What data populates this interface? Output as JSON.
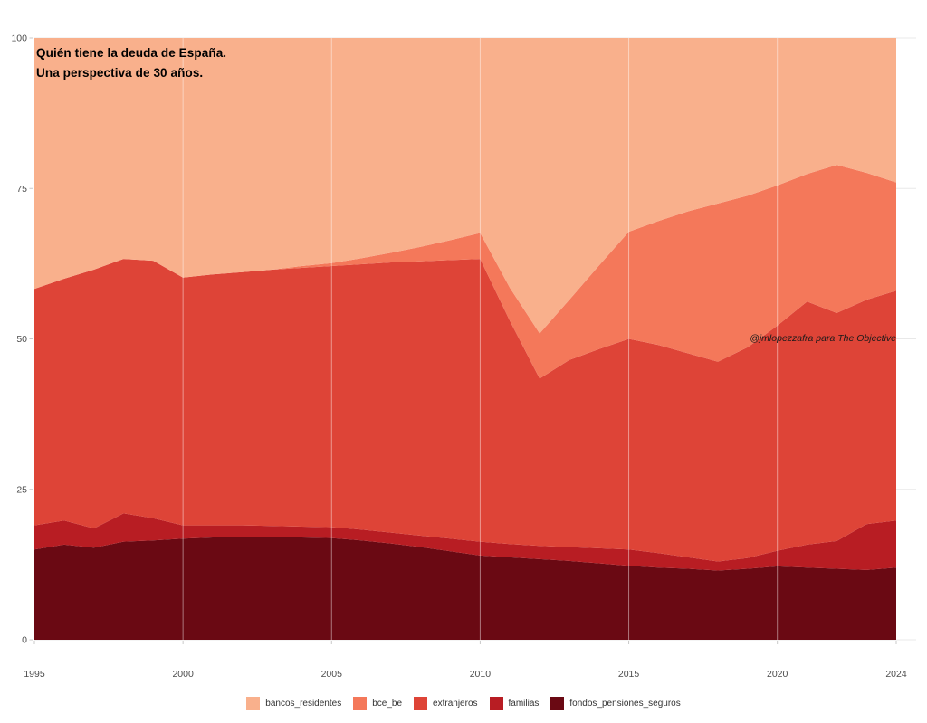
{
  "page": {
    "title_line1": "Quién tiene la deuda de España.",
    "title_line2": "Una perspectiva de 30 años.",
    "attribution": "@jmlopezzafra para The Objective"
  },
  "chart_data": {
    "type": "area",
    "stacked": true,
    "normalized_percent": true,
    "title": "Quién tiene la deuda de España. Una perspectiva de 30 años.",
    "xlabel": "",
    "ylabel": "",
    "xlim": [
      1995,
      2024
    ],
    "ylim": [
      0,
      100
    ],
    "xticks": [
      1995,
      2000,
      2005,
      2010,
      2015,
      2020,
      2024
    ],
    "yticks": [
      0,
      25,
      50,
      75,
      100
    ],
    "grid_x_years": [
      2000,
      2005,
      2010,
      2015,
      2020
    ],
    "legend_position": "bottom",
    "x": [
      1995,
      1996,
      1997,
      1998,
      1999,
      2000,
      2001,
      2002,
      2003,
      2004,
      2005,
      2006,
      2007,
      2008,
      2009,
      2010,
      2011,
      2012,
      2013,
      2014,
      2015,
      2016,
      2017,
      2018,
      2019,
      2020,
      2021,
      2022,
      2023,
      2024
    ],
    "stack_order_bottom_to_top": [
      "fondos_pensiones_seguros",
      "familias",
      "extranjeros",
      "bce_be",
      "bancos_residentes"
    ],
    "series": [
      {
        "name": "bancos_residentes",
        "label": "bancos_residentes",
        "color": "#F9B08C",
        "values": [
          41.7,
          40.0,
          38.5,
          36.7,
          37.0,
          39.8,
          39.3,
          38.9,
          38.5,
          37.9,
          37.4,
          36.6,
          35.7,
          34.7,
          33.6,
          32.4,
          41.5,
          49.1,
          43.5,
          37.8,
          32.2,
          30.4,
          28.8,
          27.5,
          26.2,
          24.5,
          22.6,
          21.1,
          22.4,
          24.0
        ]
      },
      {
        "name": "bce_be",
        "label": "bce_be",
        "color": "#F4785A",
        "values": [
          0,
          0,
          0,
          0,
          0,
          0,
          0,
          0,
          0,
          0.3,
          0.5,
          1.0,
          1.6,
          2.4,
          3.3,
          4.3,
          5.5,
          7.5,
          10.0,
          13.9,
          17.8,
          20.6,
          23.6,
          26.3,
          25.2,
          23.3,
          21.2,
          24.6,
          21.1,
          18.0
        ]
      },
      {
        "name": "extranjeros",
        "label": "extranjeros",
        "color": "#DE4437",
        "values": [
          39.3,
          40.2,
          43.0,
          42.3,
          42.8,
          41.2,
          41.7,
          42.1,
          42.6,
          43.0,
          43.4,
          44.1,
          44.9,
          45.6,
          46.3,
          47.0,
          37.1,
          27.8,
          31.1,
          33.1,
          35.0,
          34.6,
          33.9,
          33.2,
          35.0,
          37.4,
          40.4,
          37.9,
          37.3,
          38.2
        ]
      },
      {
        "name": "familias",
        "label": "familias",
        "color": "#B81D23",
        "values": [
          4.0,
          4.0,
          3.2,
          4.7,
          3.7,
          2.2,
          2.0,
          2.0,
          1.9,
          1.8,
          1.8,
          1.8,
          1.8,
          1.9,
          2.1,
          2.3,
          2.2,
          2.2,
          2.3,
          2.5,
          2.7,
          2.4,
          1.9,
          1.5,
          1.8,
          2.6,
          3.8,
          4.6,
          7.6,
          7.8
        ]
      },
      {
        "name": "fondos_pensiones_seguros",
        "label": "fondos_pensiones_seguros",
        "color": "#6A0913",
        "values": [
          15.0,
          15.8,
          15.3,
          16.3,
          16.5,
          16.8,
          17.0,
          17.0,
          17.0,
          17.0,
          16.9,
          16.5,
          16.0,
          15.4,
          14.7,
          14.0,
          13.7,
          13.4,
          13.1,
          12.7,
          12.3,
          12.0,
          11.8,
          11.5,
          11.8,
          12.2,
          12.0,
          11.8,
          11.6,
          12.0
        ]
      }
    ],
    "colors": {
      "h_grid": "#e8e8e8",
      "v_grid_over_areas": "rgba(255,255,255,0.45)",
      "tick": "#c9c9c9",
      "tick_label": "#4d4d4d"
    }
  }
}
